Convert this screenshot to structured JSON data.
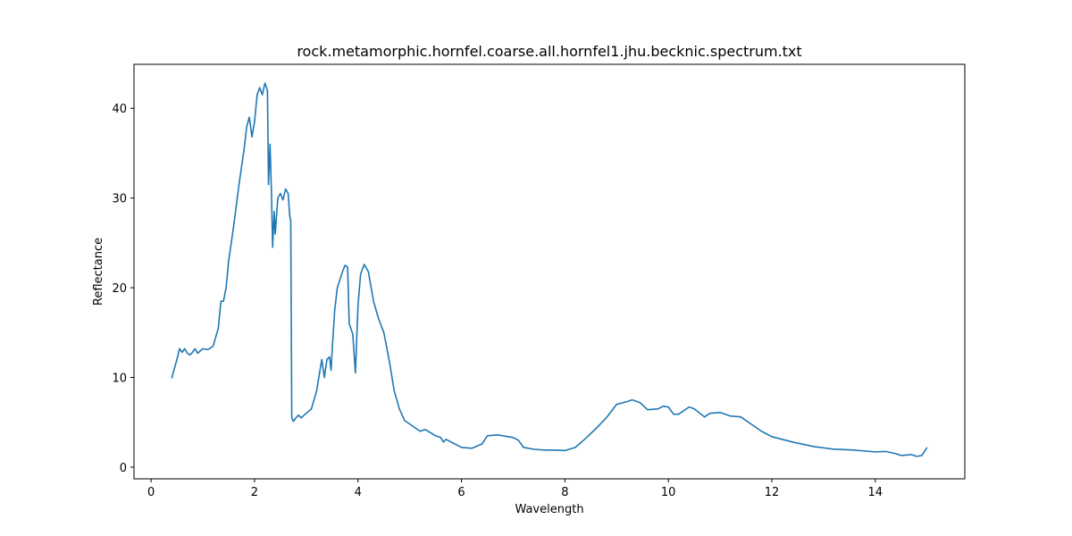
{
  "chart_data": {
    "type": "line",
    "title": "rock.metamorphic.hornfel.coarse.all.hornfel1.jhu.becknic.spectrum.txt",
    "x_label": "Wavelength",
    "y_label": "Reflectance",
    "xlim": [
      -0.33,
      15.73
    ],
    "ylim": [
      -1.3,
      44.9
    ],
    "xticks": [
      0,
      2,
      4,
      6,
      8,
      10,
      12,
      14
    ],
    "yticks": [
      0,
      10,
      20,
      30,
      40
    ],
    "grid": false,
    "series": [
      {
        "name": "Reflectance",
        "color": "#1f77b4",
        "x": [
          0.4,
          0.45,
          0.5,
          0.55,
          0.6,
          0.65,
          0.7,
          0.75,
          0.8,
          0.85,
          0.9,
          1.0,
          1.1,
          1.2,
          1.3,
          1.35,
          1.4,
          1.45,
          1.5,
          1.6,
          1.7,
          1.8,
          1.85,
          1.9,
          1.95,
          2.0,
          2.05,
          2.1,
          2.15,
          2.2,
          2.25,
          2.27,
          2.3,
          2.33,
          2.35,
          2.38,
          2.4,
          2.45,
          2.5,
          2.55,
          2.6,
          2.65,
          2.68,
          2.7,
          2.72,
          2.75,
          2.8,
          2.85,
          2.9,
          3.0,
          3.1,
          3.2,
          3.3,
          3.35,
          3.4,
          3.45,
          3.48,
          3.5,
          3.55,
          3.6,
          3.7,
          3.75,
          3.8,
          3.83,
          3.9,
          3.95,
          4.0,
          4.05,
          4.12,
          4.2,
          4.3,
          4.4,
          4.5,
          4.6,
          4.7,
          4.8,
          4.9,
          5.0,
          5.1,
          5.2,
          5.3,
          5.5,
          5.6,
          5.65,
          5.7,
          6.0,
          6.2,
          6.4,
          6.5,
          6.7,
          7.0,
          7.1,
          7.2,
          7.4,
          7.6,
          7.8,
          8.0,
          8.2,
          8.4,
          8.6,
          8.8,
          9.0,
          9.2,
          9.3,
          9.45,
          9.6,
          9.8,
          9.9,
          10.0,
          10.1,
          10.2,
          10.4,
          10.5,
          10.7,
          10.8,
          11.0,
          11.2,
          11.4,
          11.6,
          11.8,
          12.0,
          12.4,
          12.8,
          13.2,
          13.6,
          14.0,
          14.2,
          14.4,
          14.5,
          14.7,
          14.8,
          14.9,
          15.0
        ],
        "values": [
          9.9,
          11,
          12,
          13.2,
          12.8,
          13.2,
          12.7,
          12.5,
          12.8,
          13.2,
          12.7,
          13.2,
          13.1,
          13.5,
          15.5,
          18.5,
          18.5,
          20,
          23,
          27,
          31.5,
          35.5,
          38,
          39,
          36.8,
          38.5,
          41.5,
          42.3,
          41.5,
          42.8,
          42,
          31.5,
          36,
          30,
          24.5,
          28.5,
          26,
          30,
          30.5,
          29.8,
          31,
          30.5,
          28,
          27.5,
          5.5,
          5.1,
          5.5,
          5.8,
          5.5,
          6,
          6.5,
          8.5,
          12,
          10,
          12,
          12.3,
          10.8,
          13,
          17.5,
          20,
          21.8,
          22.5,
          22.3,
          16,
          14.8,
          10.5,
          18,
          21.5,
          22.6,
          21.8,
          18.5,
          16.5,
          15,
          12,
          8.5,
          6.5,
          5.2,
          4.8,
          4.4,
          4,
          4.2,
          3.5,
          3.3,
          2.8,
          3.1,
          2.2,
          2.1,
          2.6,
          3.5,
          3.6,
          3.3,
          3.0,
          2.2,
          2.0,
          1.9,
          1.9,
          1.85,
          2.2,
          3.2,
          4.3,
          5.5,
          7.0,
          7.3,
          7.5,
          7.2,
          6.4,
          6.5,
          6.8,
          6.7,
          5.9,
          5.9,
          6.7,
          6.5,
          5.6,
          6.0,
          6.1,
          5.7,
          5.6,
          4.8,
          4.0,
          3.4,
          2.8,
          2.3,
          2.0,
          1.9,
          1.7,
          1.75,
          1.5,
          1.3,
          1.4,
          1.2,
          1.3,
          2.2
        ]
      }
    ]
  }
}
